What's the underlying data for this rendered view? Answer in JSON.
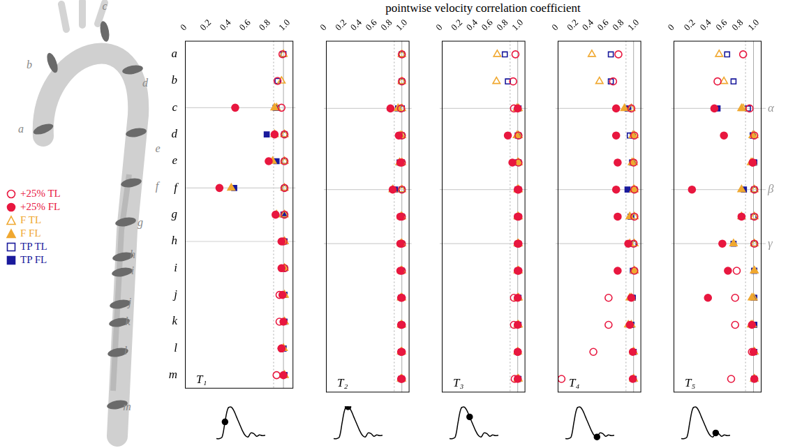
{
  "chart_data": {
    "type": "scatter",
    "x_label": "pointwise velocity correlation coefficient",
    "categories": [
      "a",
      "b",
      "c",
      "d",
      "e",
      "f",
      "g",
      "h",
      "i",
      "j",
      "k",
      "l",
      "m"
    ],
    "xlim": [
      -0.05,
      1.05
    ],
    "xticks": [
      0,
      0.2,
      0.4,
      0.6,
      0.8,
      {
        "value": 1,
        "label": "1.0"
      }
    ],
    "legend": "left",
    "reference_lines": [
      {
        "value": 0.85,
        "line_style": "dotted"
      },
      {
        "value": 0.95,
        "line_style": "solid"
      }
    ],
    "annotations": [
      {
        "category": "c",
        "label": "α"
      },
      {
        "category": "f",
        "label": "β"
      },
      {
        "category": "h",
        "label": "γ"
      }
    ],
    "series": [
      {
        "name": "+25% TL",
        "color": "#e8173f",
        "marker": "circle_open"
      },
      {
        "name": "+25% FL",
        "color": "#e8173f",
        "marker": "circle"
      },
      {
        "name": "F TL",
        "color": "#f0a830",
        "marker": "triangle_open"
      },
      {
        "name": "F FL",
        "color": "#f0a830",
        "marker": "triangle"
      },
      {
        "name": "TP TL",
        "color": "#1a1a9c",
        "marker": "square_open"
      },
      {
        "name": "TP FL",
        "color": "#1a1a9c",
        "marker": "square"
      }
    ],
    "waveform": [
      0.05,
      0.05,
      0.1,
      0.55,
      0.95,
      1.0,
      0.9,
      0.7,
      0.5,
      0.3,
      0.15,
      0.1,
      0.22,
      0.2,
      0.12,
      0.16,
      0.14,
      0.15
    ],
    "panels": [
      {
        "title": "T₁",
        "waveform_marker_index": 3,
        "values": [
          [
            0.94,
            0.89,
            0.93,
            0.96,
            0.96,
            0.96,
            0.96,
            0.95,
            0.96,
            0.91,
            0.91,
            0.93,
            0.88
          ],
          [
            null,
            null,
            0.46,
            0.86,
            0.8,
            0.3,
            0.87,
            0.93,
            0.93,
            0.94,
            0.95,
            0.93,
            0.95
          ],
          [
            0.95,
            0.93,
            0.88,
            0.96,
            0.96,
            0.96,
            0.96,
            0.96,
            0.96,
            0.96,
            0.96,
            0.95,
            0.96
          ],
          [
            null,
            null,
            0.86,
            0.86,
            0.84,
            0.42,
            0.88,
            0.96,
            0.96,
            0.96,
            0.96,
            0.95,
            0.96
          ],
          [
            0.95,
            0.89,
            0.88,
            0.96,
            0.96,
            0.96,
            0.96,
            0.96,
            0.96,
            0.96,
            0.96,
            0.95,
            0.96
          ],
          [
            null,
            null,
            0.87,
            0.78,
            0.88,
            0.45,
            0.95,
            0.96,
            0.96,
            0.96,
            0.96,
            0.95,
            0.96
          ]
        ]
      },
      {
        "title": "T₂",
        "waveform_marker_index": 5,
        "values": [
          [
            0.95,
            0.95,
            0.94,
            0.95,
            0.95,
            0.95,
            0.95,
            0.95,
            0.95,
            0.95,
            0.95,
            0.95,
            0.95
          ],
          [
            null,
            null,
            0.8,
            0.91,
            0.93,
            0.83,
            0.93,
            0.93,
            0.93,
            0.94,
            0.94,
            0.94,
            0.94
          ],
          [
            0.95,
            0.95,
            0.95,
            0.95,
            0.95,
            0.95,
            0.95,
            0.95,
            0.95,
            0.95,
            0.95,
            0.95,
            0.95
          ],
          [
            null,
            null,
            0.9,
            0.93,
            0.92,
            0.83,
            0.94,
            0.94,
            0.94,
            0.94,
            0.94,
            0.94,
            0.94
          ],
          [
            0.95,
            0.95,
            0.95,
            0.95,
            0.95,
            0.95,
            0.95,
            0.95,
            0.95,
            0.95,
            0.95,
            0.95,
            0.95
          ],
          [
            null,
            null,
            0.9,
            0.92,
            0.92,
            0.86,
            0.94,
            0.94,
            0.94,
            0.94,
            0.94,
            0.94,
            0.94
          ]
        ]
      },
      {
        "title": "T₃",
        "waveform_marker_index": 7,
        "values": [
          [
            0.92,
            0.89,
            0.9,
            0.96,
            0.96,
            0.96,
            0.96,
            0.96,
            0.96,
            0.9,
            0.9,
            0.95,
            0.91
          ],
          [
            null,
            null,
            0.95,
            0.82,
            0.88,
            0.95,
            0.95,
            0.95,
            0.95,
            0.95,
            0.95,
            0.95,
            0.95
          ],
          [
            0.68,
            0.67,
            0.96,
            0.96,
            0.96,
            0.96,
            0.96,
            0.96,
            0.96,
            0.96,
            0.96,
            0.95,
            0.96
          ],
          [
            null,
            null,
            0.94,
            0.94,
            0.95,
            0.95,
            0.95,
            0.95,
            0.95,
            0.95,
            0.95,
            0.95,
            0.95
          ],
          [
            0.78,
            0.82,
            0.96,
            0.96,
            0.96,
            0.96,
            0.96,
            0.96,
            0.96,
            0.96,
            0.96,
            0.95,
            0.96
          ],
          [
            null,
            null,
            0.95,
            0.95,
            0.95,
            0.95,
            0.95,
            0.95,
            0.95,
            0.95,
            0.95,
            0.95,
            0.95
          ]
        ]
      },
      {
        "title": "T₄",
        "waveform_marker_index": 11,
        "values": [
          [
            0.75,
            0.68,
            0.92,
            0.96,
            0.95,
            0.96,
            0.96,
            0.95,
            0.96,
            0.62,
            0.62,
            0.42,
            0
          ],
          [
            null,
            null,
            0.72,
            0.72,
            0.74,
            0.72,
            0.74,
            0.88,
            0.74,
            0.92,
            0.9,
            0.94,
            0.94
          ],
          [
            0.4,
            0.5,
            0.92,
            0.96,
            0.95,
            0.96,
            0.96,
            0.96,
            0.96,
            0.92,
            0.92,
            0.95,
            0.95
          ],
          [
            null,
            null,
            0.83,
            0.94,
            0.93,
            0.95,
            0.9,
            0.9,
            0.96,
            0.9,
            0.88,
            0.95,
            0.95
          ],
          [
            0.65,
            0.65,
            0.88,
            0.9,
            0.94,
            0.96,
            0.92,
            0.95,
            0.96,
            0.94,
            0.92,
            0.95,
            0.95
          ],
          [
            null,
            null,
            0.87,
            0.94,
            0.93,
            0.87,
            0.91,
            0.9,
            0.94,
            0.93,
            0.92,
            0.95,
            0.95
          ]
        ]
      },
      {
        "title": "T₅",
        "waveform_marker_index": 12,
        "values": [
          [
            0.82,
            0.5,
            0.9,
            0.96,
            0.94,
            0.96,
            0.96,
            0.96,
            0.74,
            0.72,
            0.72,
            0.93,
            0.67
          ],
          [
            null,
            null,
            0.46,
            0.58,
            0.94,
            0.18,
            0.8,
            0.56,
            0.63,
            0.38,
            0.93,
            0.95,
            0.96
          ],
          [
            0.52,
            0.58,
            0.82,
            0.96,
            0.94,
            0.96,
            0.96,
            0.96,
            0.96,
            0.95,
            0.94,
            0.96,
            0.96
          ],
          [
            null,
            null,
            0.8,
            0.94,
            0.92,
            0.8,
            0.8,
            0.7,
            0.96,
            0.93,
            0.92,
            0.96,
            0.96
          ],
          [
            0.62,
            0.7,
            0.88,
            0.94,
            0.95,
            0.96,
            0.95,
            0.96,
            0.96,
            0.96,
            0.96,
            0.96,
            0.96
          ],
          [
            null,
            null,
            0.5,
            0.94,
            0.96,
            0.83,
            0.8,
            0.7,
            0.96,
            0.95,
            0.96,
            0.96,
            0.96
          ]
        ]
      }
    ]
  }
}
